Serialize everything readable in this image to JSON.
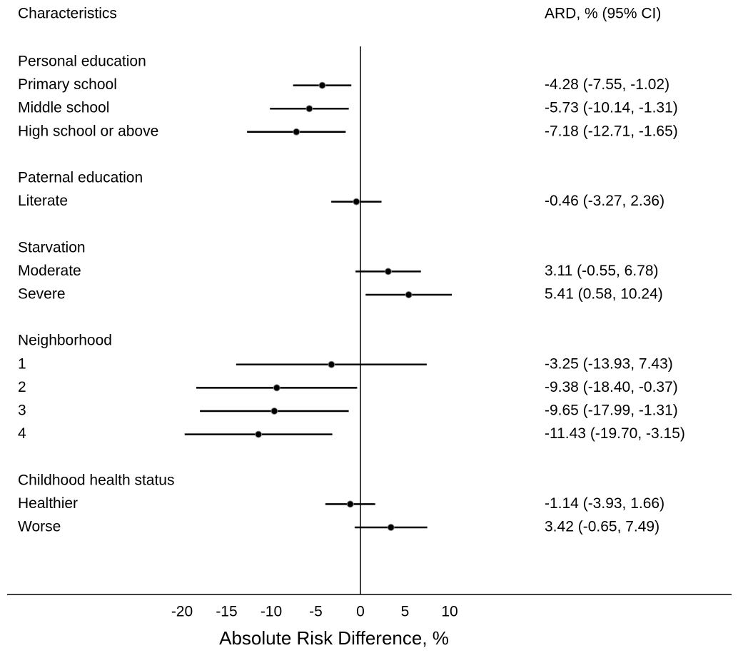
{
  "chart_data": {
    "type": "forest",
    "column_headers": [
      "Characteristics",
      "ARD, % (95% CI)"
    ],
    "xlabel": "Absolute Risk Difference, %",
    "xlim": [
      -20,
      10
    ],
    "xticks": [
      -20,
      -15,
      -10,
      -5,
      0,
      5,
      10
    ],
    "color": "#000000",
    "groups": [
      {
        "name": "Personal education",
        "rows": [
          {
            "label": "Primary school",
            "value": -4.28,
            "lower": -7.55,
            "upper": -1.02,
            "value_label": "-4.28 (-7.55, -1.02)"
          },
          {
            "label": "Middle school",
            "value": -5.73,
            "lower": -10.14,
            "upper": -1.31,
            "value_label": "-5.73 (-10.14, -1.31)"
          },
          {
            "label": "High school or above",
            "value": -7.18,
            "lower": -12.71,
            "upper": -1.65,
            "value_label": "-7.18 (-12.71, -1.65)"
          }
        ]
      },
      {
        "name": "Paternal education",
        "rows": [
          {
            "label": "Literate",
            "value": -0.46,
            "lower": -3.27,
            "upper": 2.36,
            "value_label": "-0.46 (-3.27, 2.36)"
          }
        ]
      },
      {
        "name": "Starvation",
        "rows": [
          {
            "label": "Moderate",
            "value": 3.11,
            "lower": -0.55,
            "upper": 6.78,
            "value_label": "3.11 (-0.55, 6.78)"
          },
          {
            "label": "Severe",
            "value": 5.41,
            "lower": 0.58,
            "upper": 10.24,
            "value_label": "5.41 (0.58, 10.24)"
          }
        ]
      },
      {
        "name": "Neighborhood",
        "rows": [
          {
            "label": "1",
            "value": -3.25,
            "lower": -13.93,
            "upper": 7.43,
            "value_label": "-3.25 (-13.93, 7.43)"
          },
          {
            "label": "2",
            "value": -9.38,
            "lower": -18.4,
            "upper": -0.37,
            "value_label": "-9.38 (-18.40, -0.37)"
          },
          {
            "label": "3",
            "value": -9.65,
            "lower": -17.99,
            "upper": -1.31,
            "value_label": "-9.65 (-17.99, -1.31)"
          },
          {
            "label": "4",
            "value": -11.43,
            "lower": -19.7,
            "upper": -3.15,
            "value_label": "-11.43 (-19.70, -3.15)"
          }
        ]
      },
      {
        "name": "Childhood health status",
        "rows": [
          {
            "label": "Healthier",
            "value": -1.14,
            "lower": -3.93,
            "upper": 1.66,
            "value_label": "-1.14 (-3.93, 1.66)"
          },
          {
            "label": "Worse",
            "value": 3.42,
            "lower": -0.65,
            "upper": 7.49,
            "value_label": "3.42 (-0.65, 7.49)"
          }
        ]
      }
    ]
  }
}
